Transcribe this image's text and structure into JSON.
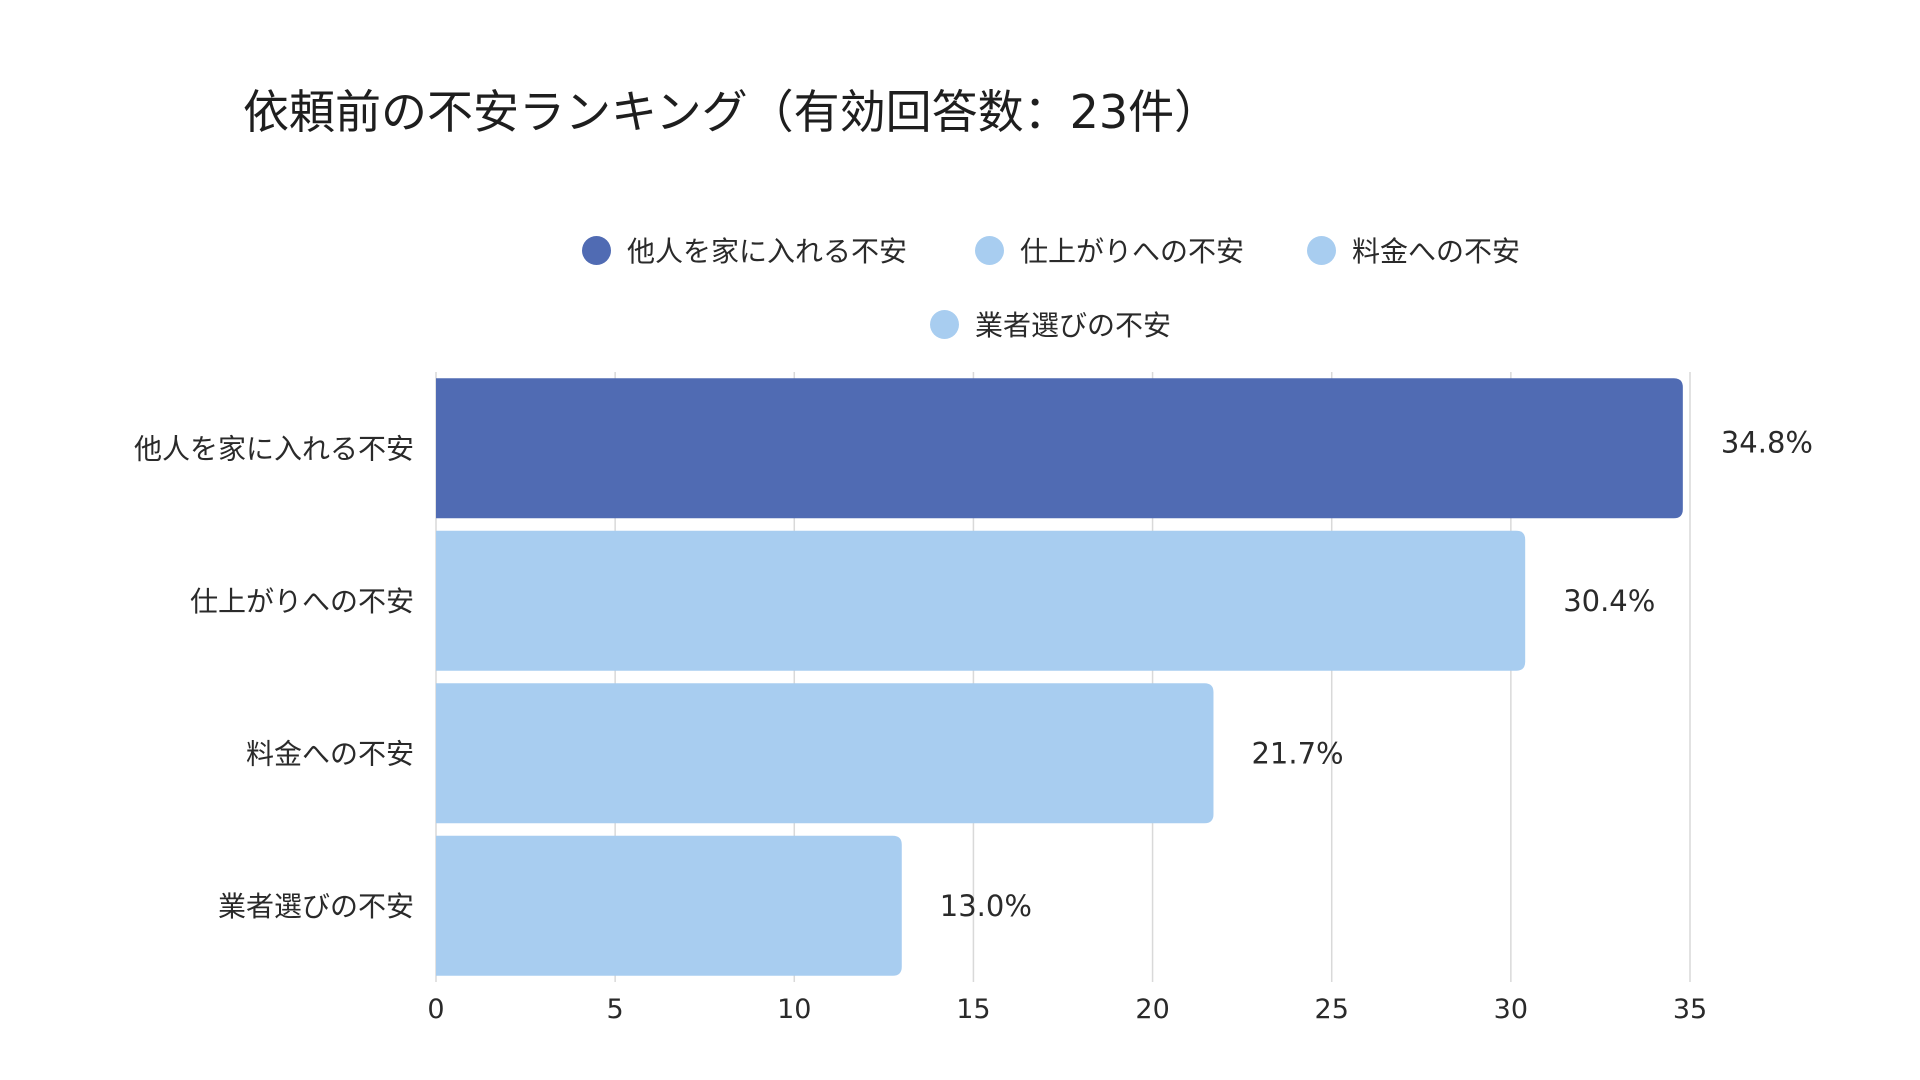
{
  "chart_data": {
    "type": "bar",
    "orientation": "horizontal",
    "title": "依頼前の不安ランキング（有効回答数：23件）",
    "categories": [
      "他人を家に入れる不安",
      "仕上がりへの不安",
      "料金への不安",
      "業者選びの不安"
    ],
    "values": [
      34.8,
      30.4,
      21.7,
      13.0
    ],
    "value_labels": [
      "34.8%",
      "30.4%",
      "21.7%",
      "13.0%"
    ],
    "colors": [
      "#506bb3",
      "#a8cdf0",
      "#a8cdf0",
      "#a8cdf0"
    ],
    "xlim": [
      0,
      35
    ],
    "xticks": [
      0,
      5,
      10,
      15,
      20,
      25,
      30,
      35
    ],
    "xtick_labels": [
      "0",
      "5",
      "10",
      "15",
      "20",
      "25",
      "30",
      "35"
    ],
    "grid": true,
    "legend": {
      "placement": "top",
      "entries": [
        {
          "label": "他人を家に入れる不安",
          "color": "#506bb3"
        },
        {
          "label": "仕上がりへの不安",
          "color": "#a8cdf0"
        },
        {
          "label": "料金への不安",
          "color": "#a8cdf0"
        },
        {
          "label": "業者選びの不安",
          "color": "#a8cdf0"
        }
      ]
    },
    "xlabel": "",
    "ylabel": ""
  }
}
